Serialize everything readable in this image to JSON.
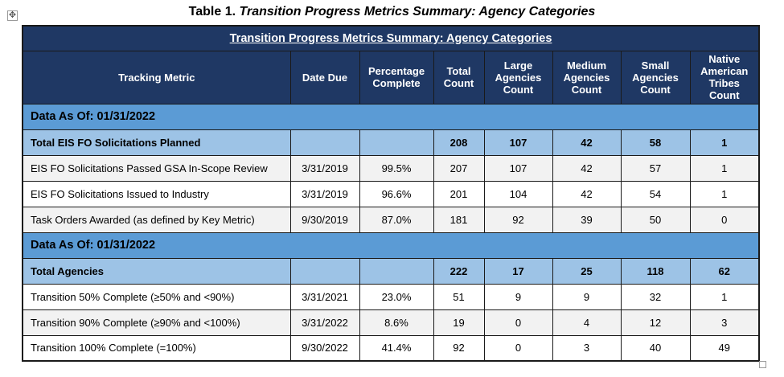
{
  "caption": {
    "prefix": "Table 1.",
    "title": "Transition Progress Metrics Summary: Agency Categories"
  },
  "banner": "Transition Progress Metrics Summary:  Agency Categories",
  "columns": [
    "Tracking Metric",
    "Date Due",
    "Percentage Complete",
    "Total Count",
    "Large Agencies Count",
    "Medium Agencies Count",
    "Small Agencies Count",
    "Native American Tribes Count"
  ],
  "sections": [
    {
      "heading": "Data As Of: 01/31/2022",
      "total": {
        "metric": "Total EIS FO Solicitations Planned",
        "date": "",
        "pct": "",
        "total": "208",
        "large": "107",
        "medium": "42",
        "small": "58",
        "native": "1"
      },
      "rows": [
        {
          "metric": "EIS FO Solicitations Passed GSA In-Scope Review",
          "date": "3/31/2019",
          "pct": "99.5%",
          "total": "207",
          "large": "107",
          "medium": "42",
          "small": "57",
          "native": "1"
        },
        {
          "metric": "EIS FO Solicitations Issued to Industry",
          "date": "3/31/2019",
          "pct": "96.6%",
          "total": "201",
          "large": "104",
          "medium": "42",
          "small": "54",
          "native": "1"
        },
        {
          "metric": "Task Orders Awarded (as defined by Key Metric)",
          "date": "9/30/2019",
          "pct": "87.0%",
          "total": "181",
          "large": "92",
          "medium": "39",
          "small": "50",
          "native": "0"
        }
      ]
    },
    {
      "heading": "Data As Of: 01/31/2022",
      "total": {
        "metric": "Total Agencies",
        "date": "",
        "pct": "",
        "total": "222",
        "large": "17",
        "medium": "25",
        "small": "118",
        "native": "62"
      },
      "rows": [
        {
          "metric": "Transition 50% Complete (≥50% and <90%)",
          "date": "3/31/2021",
          "pct": "23.0%",
          "total": "51",
          "large": "9",
          "medium": "9",
          "small": "32",
          "native": "1"
        },
        {
          "metric": "Transition 90% Complete (≥90% and <100%)",
          "date": "3/31/2022",
          "pct": "8.6%",
          "total": "19",
          "large": "0",
          "medium": "4",
          "small": "12",
          "native": "3"
        },
        {
          "metric": "Transition 100% Complete (=100%)",
          "date": "9/30/2022",
          "pct": "41.4%",
          "total": "92",
          "large": "0",
          "medium": "3",
          "small": "40",
          "native": "49"
        }
      ]
    }
  ],
  "icons": {
    "move_handle": "move-icon",
    "resize_handle": "resize-icon"
  },
  "colors": {
    "header_bg": "#1f3864",
    "section_bg": "#5b9bd5",
    "total_bg": "#9dc3e6",
    "alt_row_bg": "#f2f2f2"
  }
}
